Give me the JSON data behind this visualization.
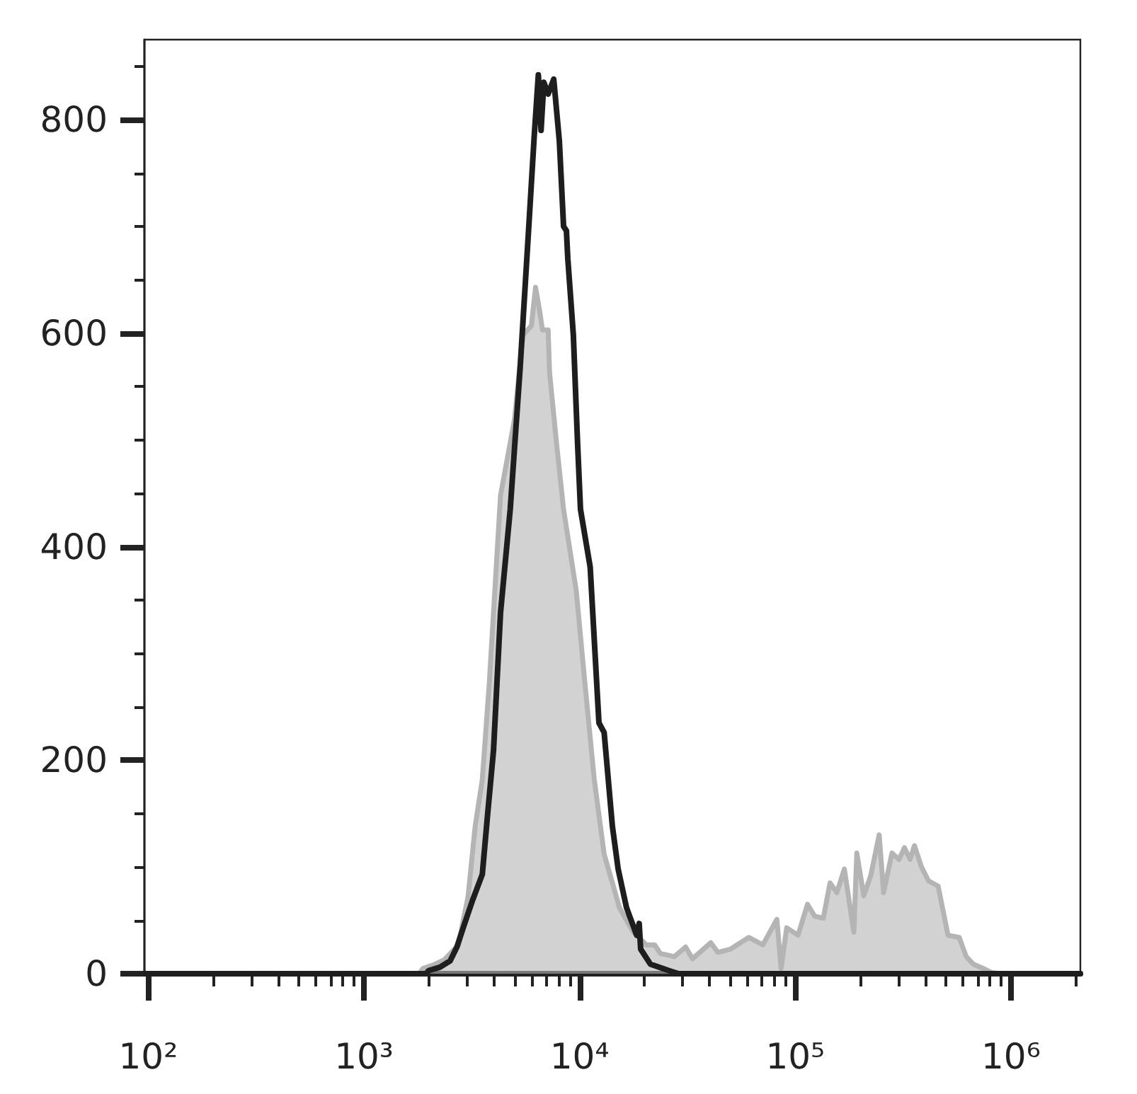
{
  "chart_data": {
    "type": "area",
    "log": "x",
    "grid": false,
    "marker": "none",
    "xlim": [
      96,
      2100000
    ],
    "xticks": [
      {
        "value": 100,
        "label": "10²"
      },
      {
        "value": 200,
        "label": null
      },
      {
        "value": 300,
        "label": null
      },
      {
        "value": 400,
        "label": null
      },
      {
        "value": 500,
        "label": null
      },
      {
        "value": 600,
        "label": null
      },
      {
        "value": 700,
        "label": null
      },
      {
        "value": 800,
        "label": null
      },
      {
        "value": 900,
        "label": null
      },
      {
        "value": 1000,
        "label": "10³"
      },
      {
        "value": 2000,
        "label": null
      },
      {
        "value": 3000,
        "label": null
      },
      {
        "value": 4000,
        "label": null
      },
      {
        "value": 5000,
        "label": null
      },
      {
        "value": 6000,
        "label": null
      },
      {
        "value": 7000,
        "label": null
      },
      {
        "value": 8000,
        "label": null
      },
      {
        "value": 9000,
        "label": null
      },
      {
        "value": 10000,
        "label": "10⁴"
      },
      {
        "value": 20000,
        "label": null
      },
      {
        "value": 30000,
        "label": null
      },
      {
        "value": 40000,
        "label": null
      },
      {
        "value": 50000,
        "label": null
      },
      {
        "value": 60000,
        "label": null
      },
      {
        "value": 70000,
        "label": null
      },
      {
        "value": 80000,
        "label": null
      },
      {
        "value": 90000,
        "label": null
      },
      {
        "value": 100000,
        "label": "10⁵"
      },
      {
        "value": 200000,
        "label": null
      },
      {
        "value": 300000,
        "label": null
      },
      {
        "value": 400000,
        "label": null
      },
      {
        "value": 500000,
        "label": null
      },
      {
        "value": 600000,
        "label": null
      },
      {
        "value": 700000,
        "label": null
      },
      {
        "value": 800000,
        "label": null
      },
      {
        "value": 900000,
        "label": null
      },
      {
        "value": 1000000,
        "label": "10⁶"
      },
      {
        "value": 2000000,
        "label": null
      }
    ],
    "ylim": [
      0,
      875
    ],
    "yticks": [
      0,
      {
        "value": 50,
        "label": null
      },
      {
        "value": 100,
        "label": null
      },
      {
        "value": 150,
        "label": null
      },
      200,
      {
        "value": 250,
        "label": null
      },
      {
        "value": 300,
        "label": null
      },
      {
        "value": 350,
        "label": null
      },
      400,
      {
        "value": 450,
        "label": null
      },
      {
        "value": 500,
        "label": null
      },
      {
        "value": 550,
        "label": null
      },
      600,
      {
        "value": 650,
        "label": null
      },
      {
        "value": 700,
        "label": null
      },
      {
        "value": 750,
        "label": null
      },
      800,
      {
        "value": 850,
        "label": null
      }
    ],
    "series": [
      {
        "color": "#b4b4b4",
        "x": [
          96,
          1800,
          1880,
          2090,
          2360,
          2740,
          3040,
          3280,
          3540,
          3810,
          4050,
          4300,
          4990,
          5460,
          5980,
          6250,
          6540,
          6730,
          7150,
          7260,
          7820,
          8430,
          9650,
          10600,
          11700,
          13000,
          14200,
          15300,
          17600,
          20400,
          22300,
          23700,
          27500,
          31000,
          33400,
          40600,
          43800,
          50100,
          60900,
          70800,
          82200,
          86000,
          91300,
          103000,
          114000,
          123000,
          135000,
          145000,
          156000,
          169000,
          187000,
          193000,
          208000,
          224000,
          245000,
          257000,
          281000,
          303000,
          321000,
          341000,
          357000,
          385000,
          415000,
          460000,
          511000,
          576000,
          621000,
          669000,
          743000,
          813000,
          903000,
          2100000
        ],
        "values": [
          0,
          0,
          5,
          8,
          13,
          27,
          72,
          138,
          182,
          271,
          360,
          448,
          519,
          598,
          607,
          643,
          620,
          603,
          603,
          563,
          497,
          435,
          359,
          271,
          182,
          112,
          85,
          62,
          40,
          27,
          27,
          19,
          16,
          25,
          14,
          29,
          20,
          23,
          34,
          27,
          51,
          5,
          43,
          36,
          65,
          54,
          52,
          85,
          76,
          98,
          39,
          113,
          73,
          92,
          130,
          76,
          113,
          107,
          118,
          107,
          120,
          100,
          87,
          82,
          36,
          34,
          16,
          9,
          5,
          1,
          0,
          0
        ]
      },
      {
        "type": "line",
        "color": "#1e1e1e",
        "x": [
          96,
          1940,
          2000,
          2250,
          2510,
          2700,
          2910,
          3180,
          3540,
          3750,
          3990,
          4300,
          4770,
          5300,
          5800,
          6160,
          6440,
          6630,
          6830,
          7150,
          7590,
          8060,
          8430,
          8690,
          8820,
          9360,
          9790,
          10100,
          11200,
          12300,
          13000,
          14200,
          15100,
          16500,
          18400,
          18900,
          19200,
          21300,
          25900,
          28800,
          2100000
        ],
        "values": [
          0,
          0,
          3,
          6,
          12,
          25,
          45,
          68,
          93,
          150,
          209,
          338,
          435,
          567,
          696,
          784,
          842,
          790,
          835,
          824,
          838,
          780,
          700,
          696,
          670,
          598,
          497,
          435,
          381,
          235,
          226,
          138,
          98,
          62,
          36,
          47,
          23,
          9,
          3,
          0,
          0
        ]
      }
    ]
  }
}
